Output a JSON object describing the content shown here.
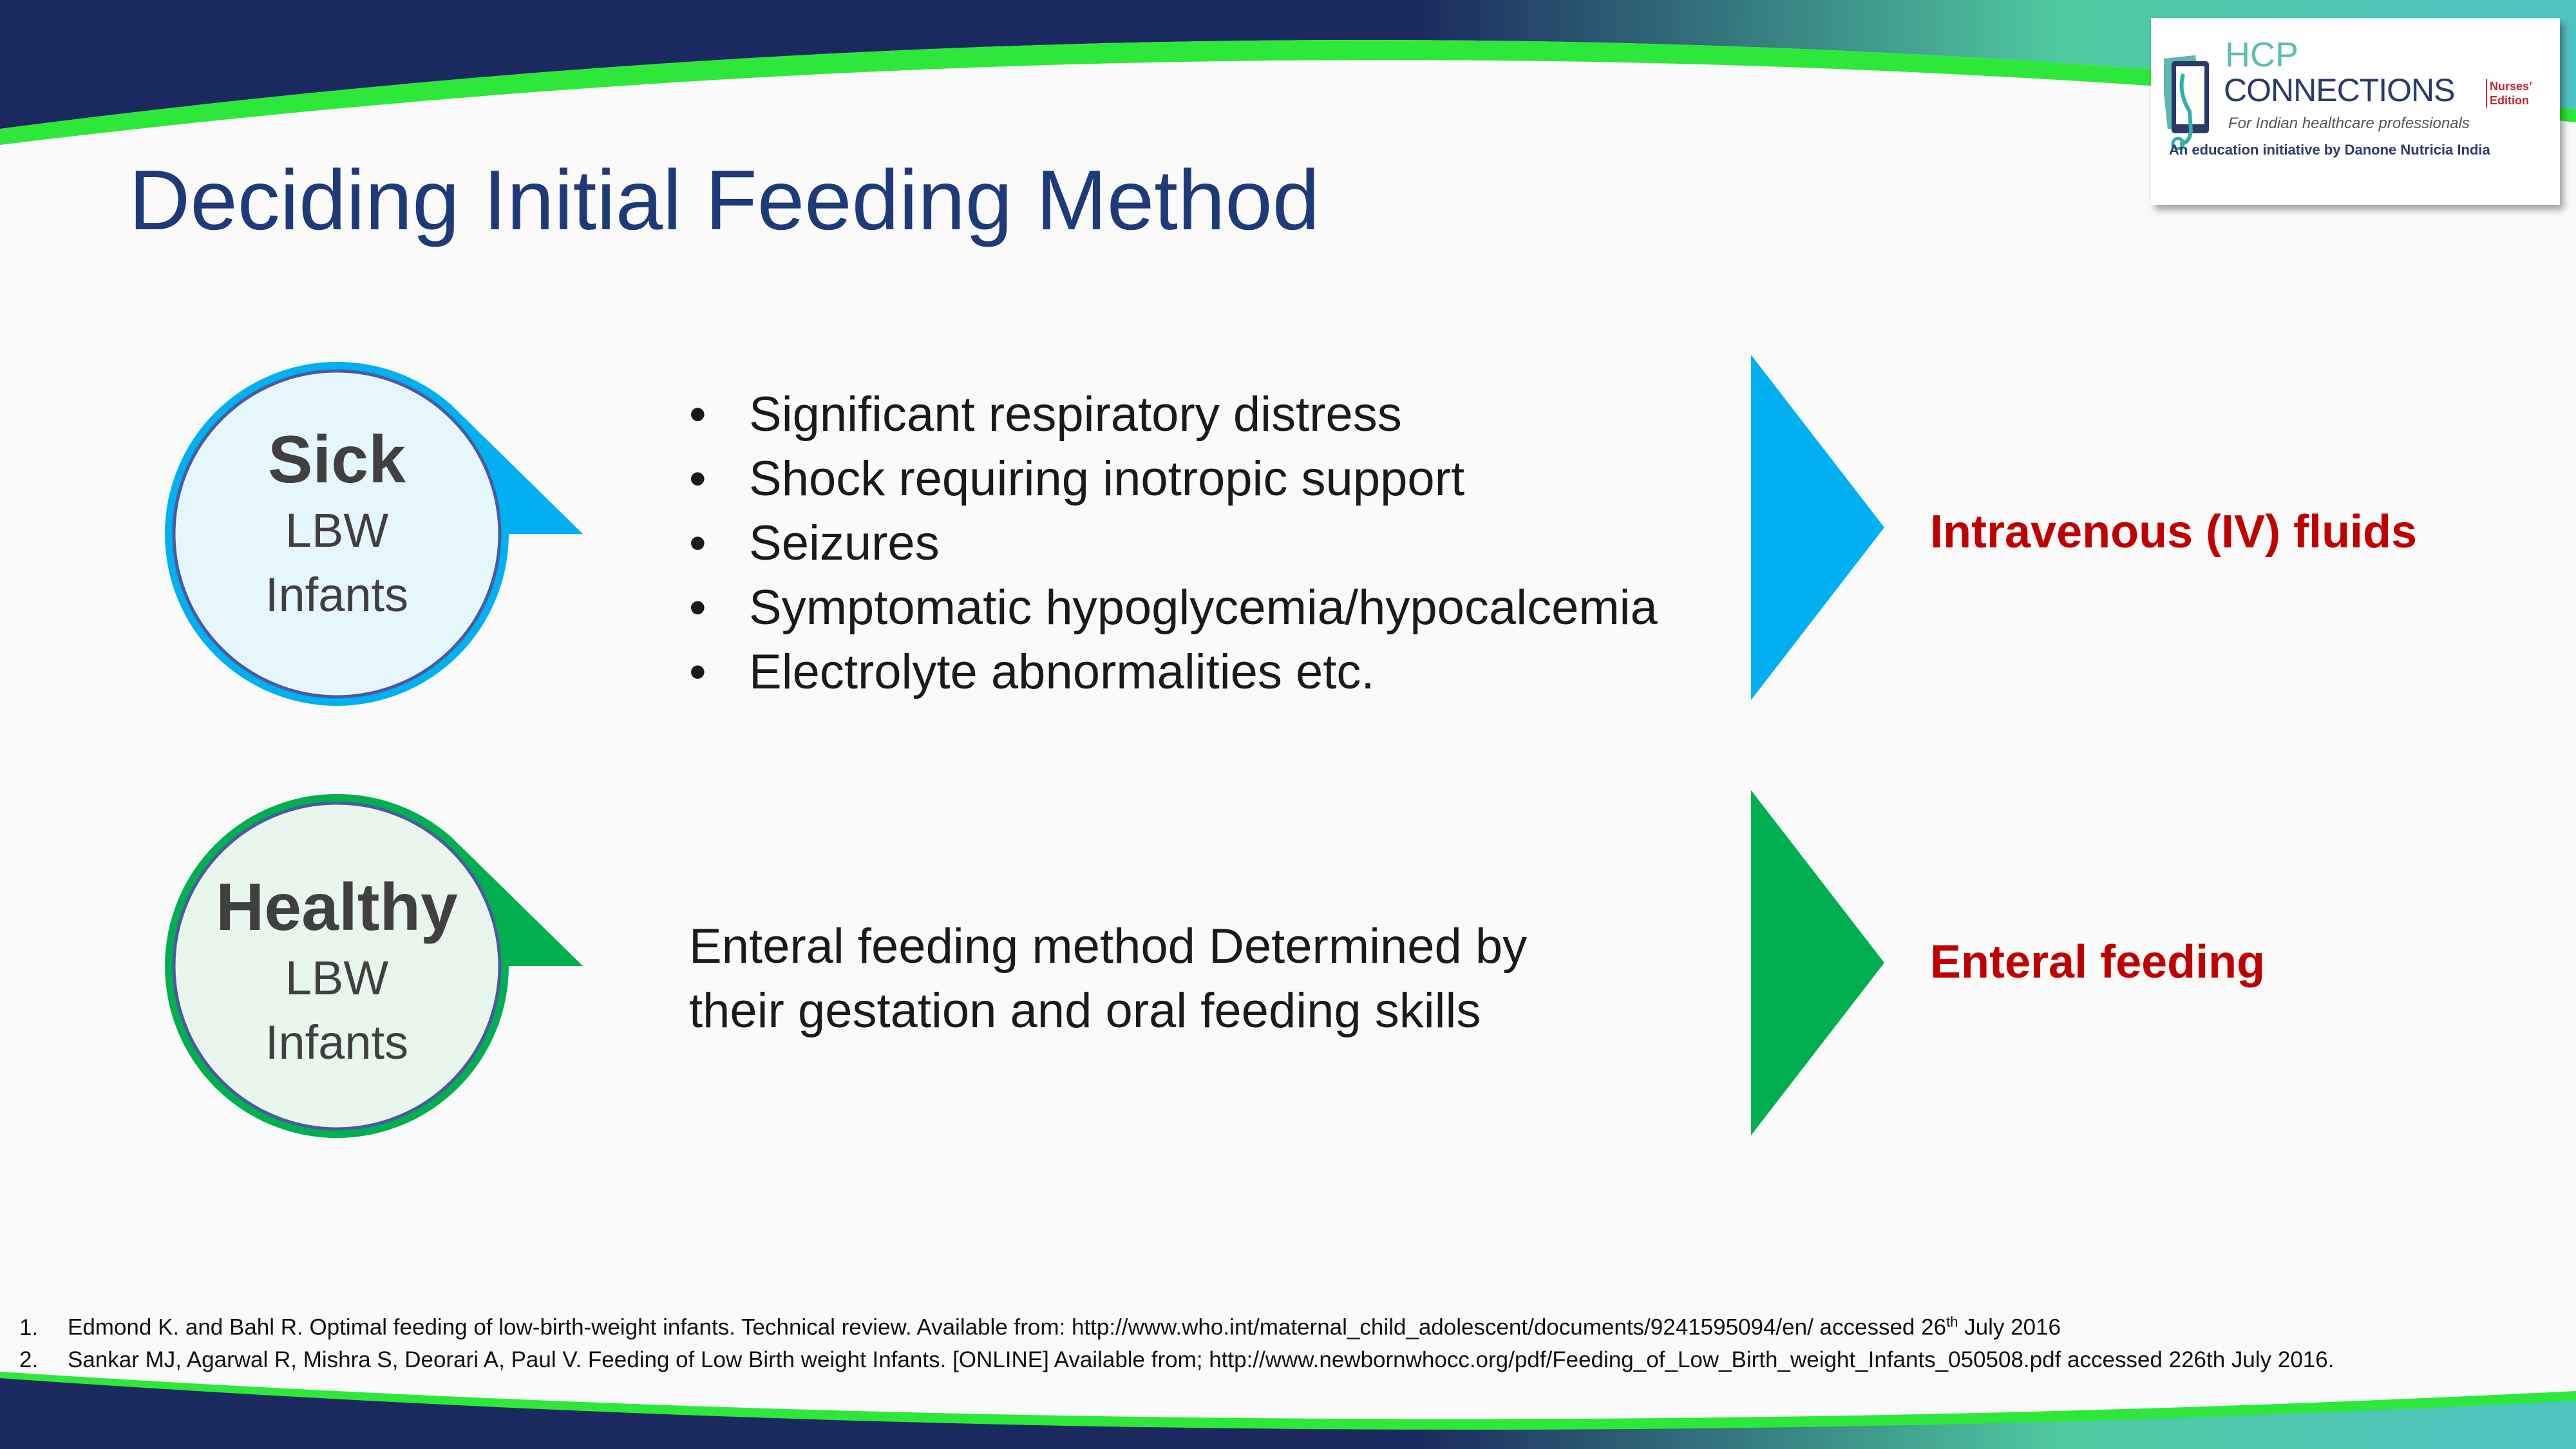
{
  "title": "Deciding Initial Feeding Method",
  "sick": {
    "heading": "Sick",
    "line1": "LBW",
    "line2": "Infants",
    "color": "#00b0f0",
    "criteria": [
      "Significant respiratory distress",
      "Shock requiring inotropic support",
      "Seizures",
      "Symptomatic hypoglycemia/hypocalcemia",
      "Electrolyte abnormalities etc."
    ],
    "outcome": "Intravenous (IV) fluids"
  },
  "healthy": {
    "heading": "Healthy",
    "line1": "LBW",
    "line2": "Infants",
    "color": "#00b050",
    "description_line1": "Enteral feeding method Determined by",
    "description_line2": "their gestation and oral feeding skills",
    "outcome": "Enteral feeding"
  },
  "outcome_color": "#c00000",
  "logo": {
    "hcp": "HCP",
    "connections": "CONNECTIONS",
    "edition1": "Nurses’",
    "edition2": "Edition",
    "tagline": "For Indian healthcare professionals",
    "initiative": "An education initiative by Danone Nutricia India"
  },
  "references": [
    {
      "num": "1.",
      "text": "Edmond K. and Bahl R. Optimal feeding of low-birth-weight infants.  Technical review.  Available from: http://www.who.int/maternal_child_adolescent/documents/9241595094/en/  accessed 26",
      "sup": "th",
      "tail": " July 2016"
    },
    {
      "num": "2.",
      "text": "Sankar MJ, Agarwal R, Mishra S, Deorari A, Paul V. Feeding of Low Birth weight Infants. [ONLINE] Available from; http://www.newbornwhocc.org/pdf/Feeding_of_Low_Birth_weight_Infants_050508.pdf accessed 226th July 2016."
    }
  ]
}
